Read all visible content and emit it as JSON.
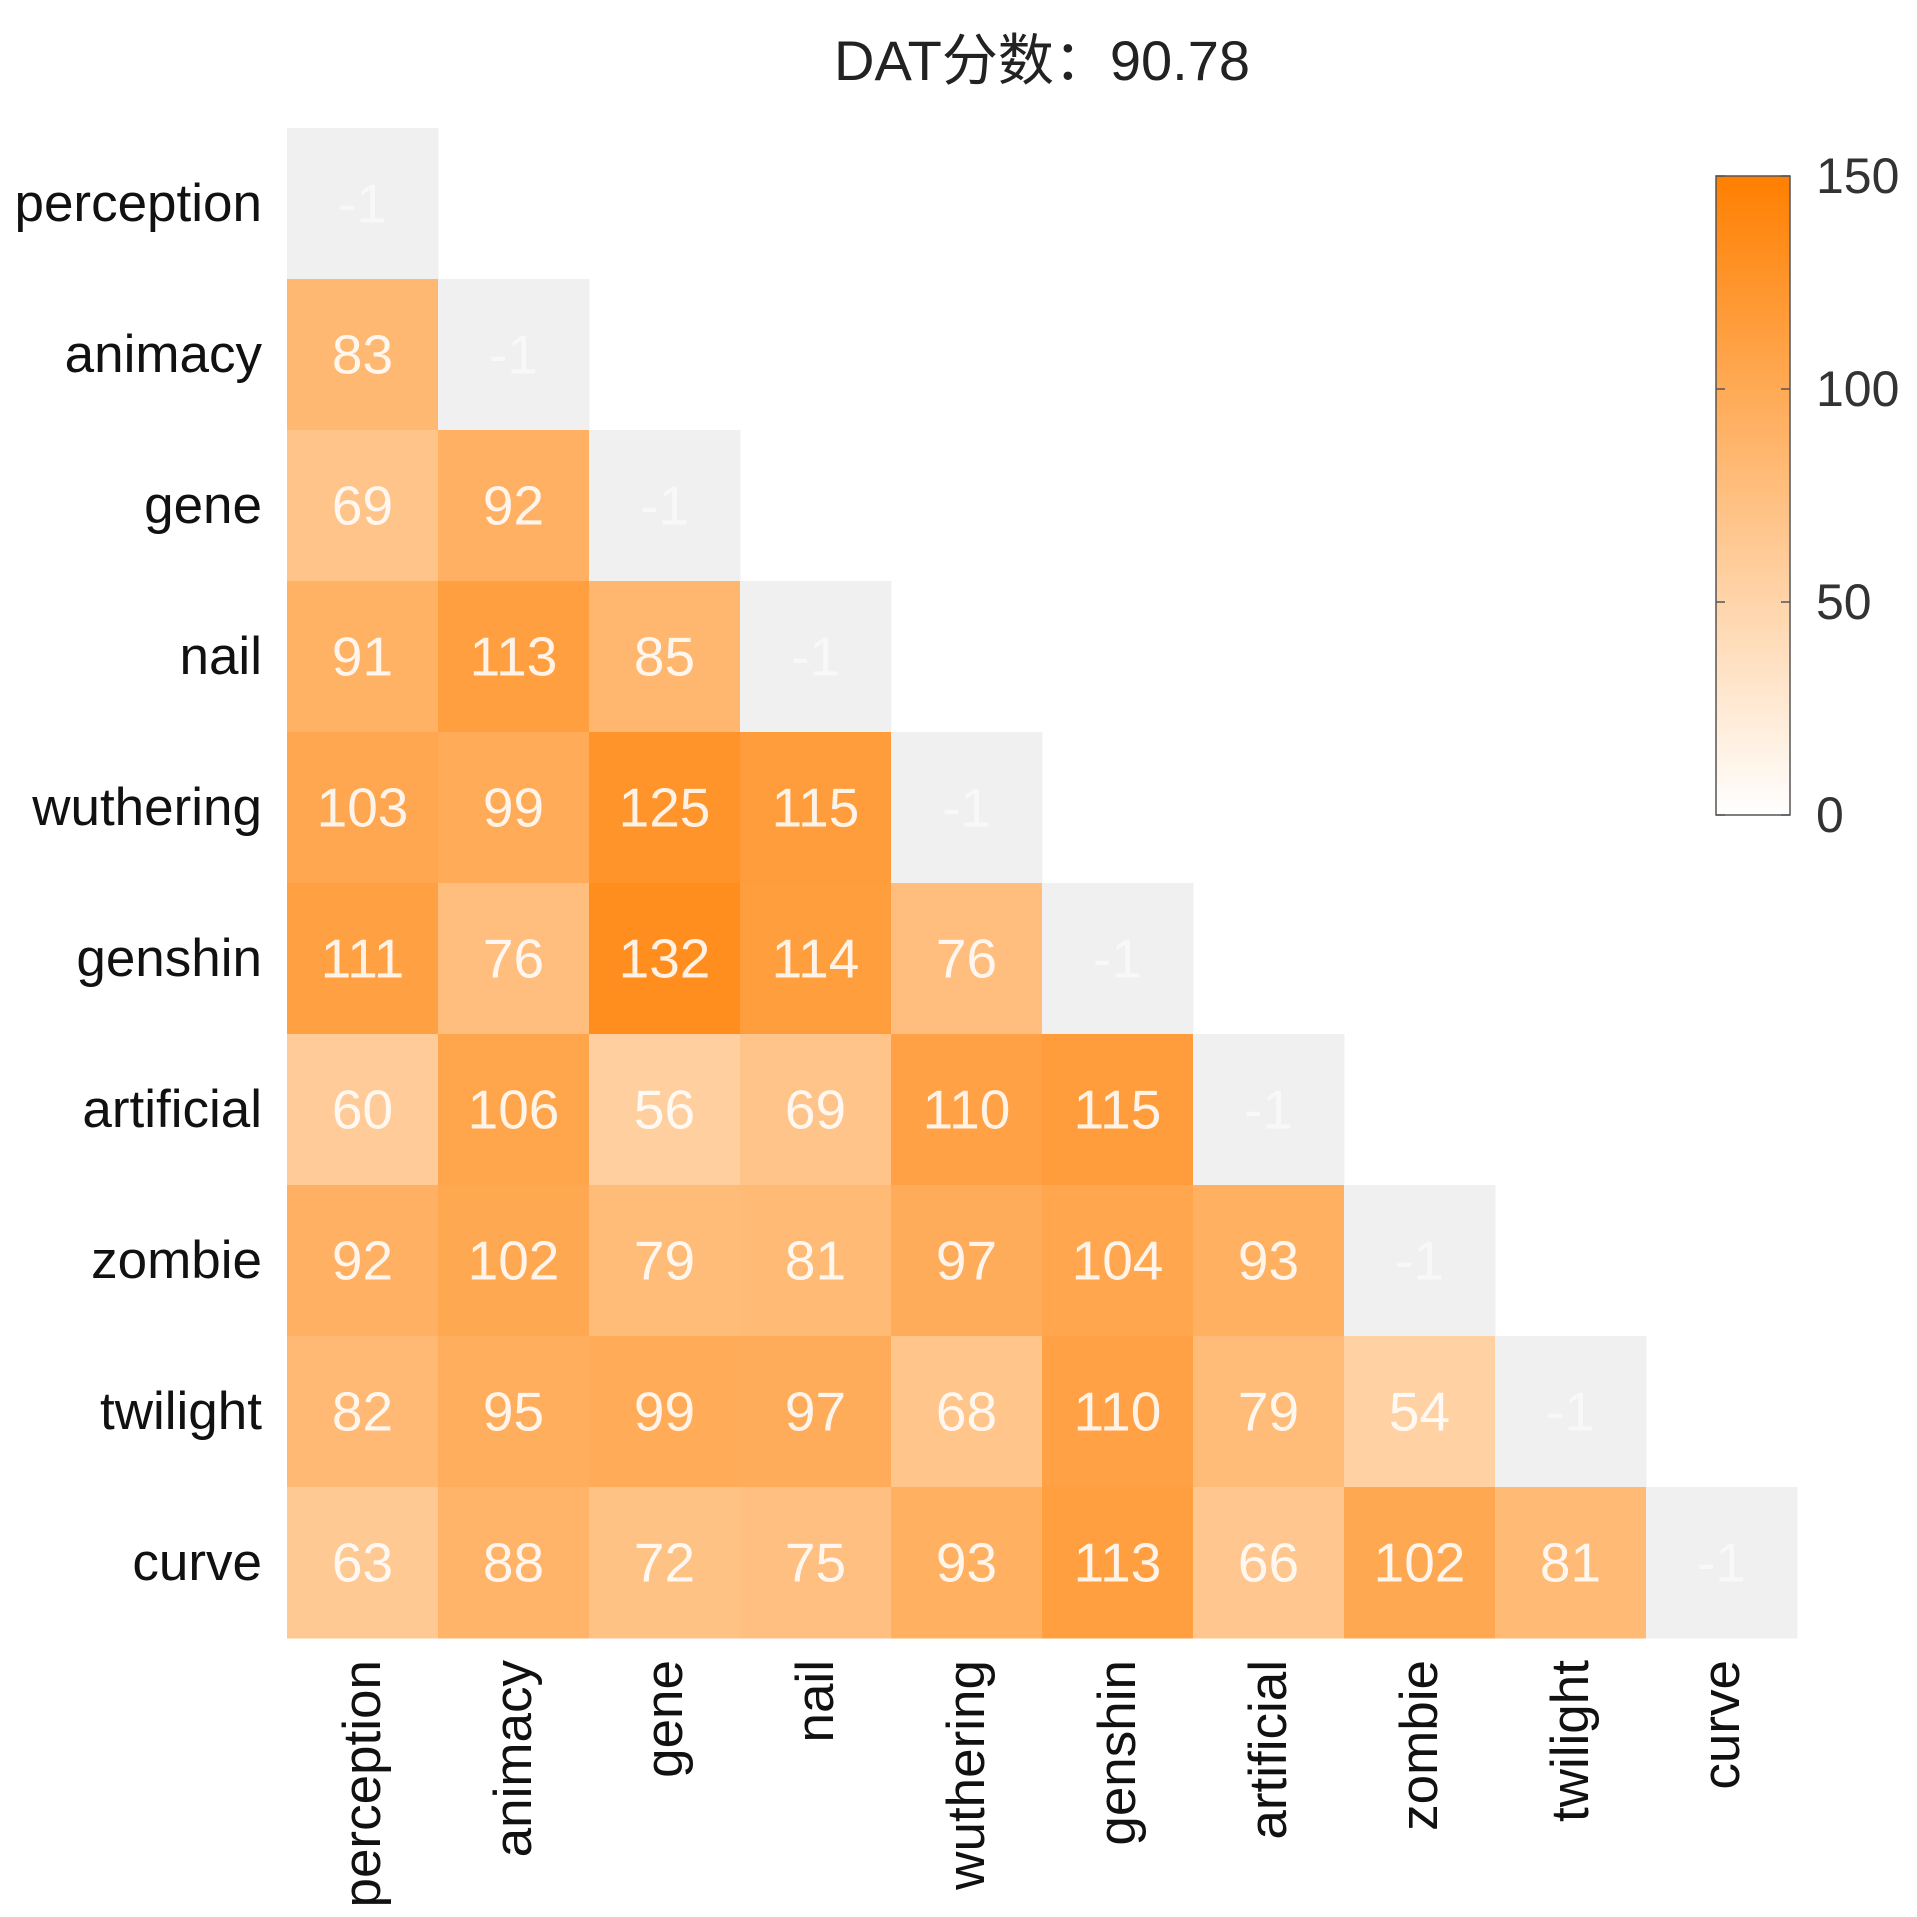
{
  "chart_data": {
    "type": "heatmap",
    "title": "DAT分数：90.78",
    "rows": [
      "perception",
      "animacy",
      "gene",
      "nail",
      "wuthering",
      "genshin",
      "artificial",
      "zombie",
      "twilight",
      "curve"
    ],
    "columns": [
      "perception",
      "animacy",
      "gene",
      "nail",
      "wuthering",
      "genshin",
      "artificial",
      "zombie",
      "twilight",
      "curve"
    ],
    "values": [
      [
        -1
      ],
      [
        83,
        -1
      ],
      [
        69,
        92,
        -1
      ],
      [
        91,
        113,
        85,
        -1
      ],
      [
        103,
        99,
        125,
        115,
        -1
      ],
      [
        111,
        76,
        132,
        114,
        76,
        -1
      ],
      [
        60,
        106,
        56,
        69,
        110,
        115,
        -1
      ],
      [
        92,
        102,
        79,
        81,
        97,
        104,
        93,
        -1
      ],
      [
        82,
        95,
        99,
        97,
        68,
        110,
        79,
        54,
        -1
      ],
      [
        63,
        88,
        72,
        75,
        93,
        113,
        66,
        102,
        81,
        -1
      ]
    ],
    "diagonal_color": "#f0f0f0",
    "colorbar": {
      "range": [
        0,
        150
      ],
      "ticks": [
        0,
        50,
        100,
        150
      ],
      "low_color": "#ffffff",
      "high_color": "#ff7f00"
    }
  }
}
